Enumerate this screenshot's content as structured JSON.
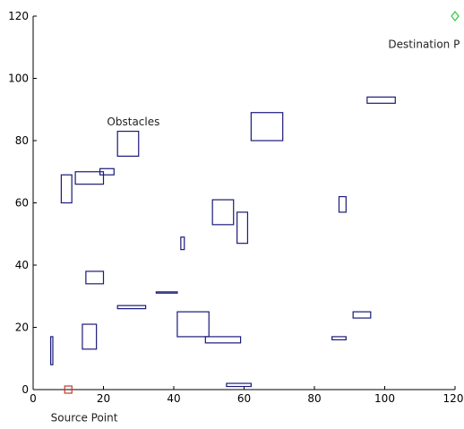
{
  "chart_data": {
    "type": "scatter",
    "title": "",
    "xlabel": "",
    "ylabel": "",
    "xlim": [
      0,
      120
    ],
    "ylim": [
      0,
      120
    ],
    "x_ticks": [
      0,
      20,
      40,
      60,
      80,
      100,
      120
    ],
    "y_ticks": [
      0,
      20,
      40,
      60,
      80,
      100,
      120
    ],
    "x_tick_labels": [
      "0",
      "20",
      "40",
      "60",
      "80",
      "100",
      "120"
    ],
    "y_tick_labels": [
      "0",
      "20",
      "40",
      "60",
      "80",
      "100",
      "120"
    ],
    "grid": false,
    "colors": {
      "obstacle": "#1a1a7a",
      "source": "#c0392b",
      "destination": "#2ecc40",
      "axis": "#000000"
    },
    "source_point": {
      "x": 10,
      "y": 0,
      "marker": "square"
    },
    "destination_point": {
      "x": 120,
      "y": 120,
      "marker": "diamond"
    },
    "annotations": [
      {
        "text": "Source Point",
        "x": 5,
        "y": -9
      },
      {
        "text": "Destination P",
        "x": 101,
        "y": 111
      },
      {
        "text": "Obstacles",
        "x": 21,
        "y": 86
      }
    ],
    "obstacles": [
      {
        "x1": 62,
        "y1": 80,
        "x2": 71,
        "y2": 89
      },
      {
        "x1": 24,
        "y1": 75,
        "x2": 30,
        "y2": 83
      },
      {
        "x1": 95,
        "y1": 92,
        "x2": 103,
        "y2": 94
      },
      {
        "x1": 8,
        "y1": 60,
        "x2": 11,
        "y2": 69
      },
      {
        "x1": 12,
        "y1": 66,
        "x2": 20,
        "y2": 70
      },
      {
        "x1": 19,
        "y1": 69,
        "x2": 23,
        "y2": 71
      },
      {
        "x1": 51,
        "y1": 53,
        "x2": 57,
        "y2": 61
      },
      {
        "x1": 58,
        "y1": 47,
        "x2": 61,
        "y2": 57
      },
      {
        "x1": 87,
        "y1": 57,
        "x2": 89,
        "y2": 62
      },
      {
        "x1": 42,
        "y1": 45,
        "x2": 43,
        "y2": 49
      },
      {
        "x1": 15,
        "y1": 34,
        "x2": 20,
        "y2": 38
      },
      {
        "x1": 35,
        "y1": 31,
        "x2": 41,
        "y2": 31.4
      },
      {
        "x1": 24,
        "y1": 26,
        "x2": 32,
        "y2": 27
      },
      {
        "x1": 41,
        "y1": 17,
        "x2": 50,
        "y2": 25
      },
      {
        "x1": 49,
        "y1": 15,
        "x2": 59,
        "y2": 17
      },
      {
        "x1": 14,
        "y1": 13,
        "x2": 18,
        "y2": 21
      },
      {
        "x1": 91,
        "y1": 23,
        "x2": 96,
        "y2": 25
      },
      {
        "x1": 85,
        "y1": 16,
        "x2": 89,
        "y2": 17
      },
      {
        "x1": 5,
        "y1": 8,
        "x2": 5.6,
        "y2": 17
      },
      {
        "x1": 55,
        "y1": 1,
        "x2": 62,
        "y2": 2
      }
    ]
  }
}
